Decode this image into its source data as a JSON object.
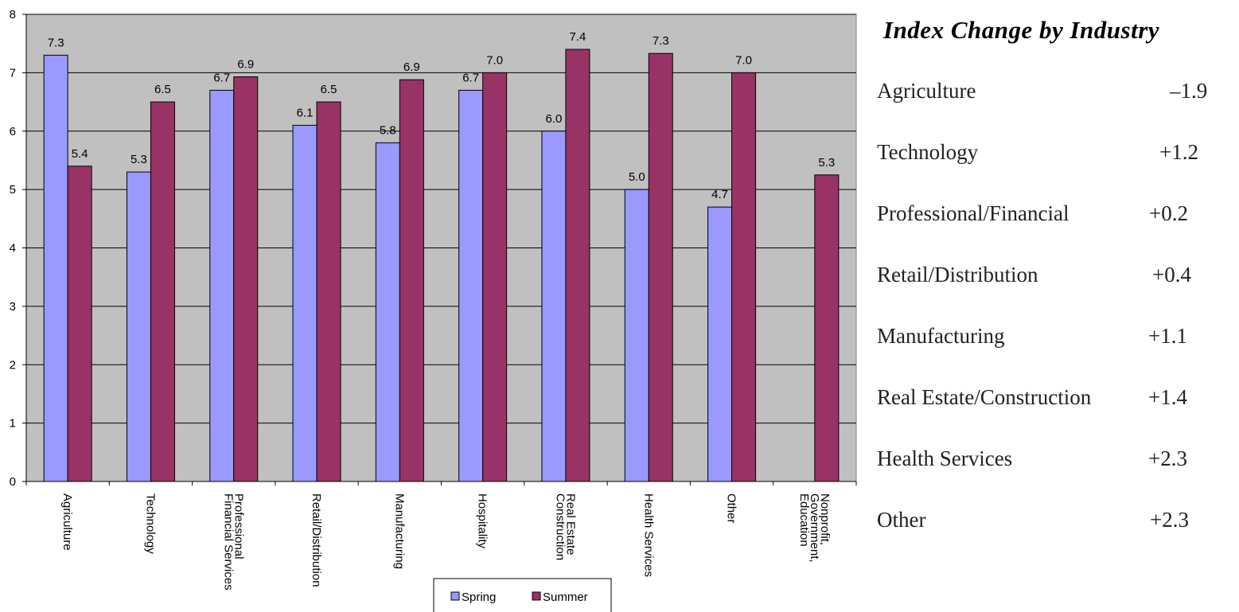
{
  "chart_data": {
    "type": "bar",
    "categories": [
      [
        "Agriculture"
      ],
      [
        "Technology"
      ],
      [
        "Professional",
        "Financial Services"
      ],
      [
        "Retail/Distribution"
      ],
      [
        "Manufacturing"
      ],
      [
        "Hospitality"
      ],
      [
        "Real Estate",
        "Construction"
      ],
      [
        "Health Services"
      ],
      [
        "Other"
      ],
      [
        "Nonprofit,",
        "Government,",
        "Education"
      ]
    ],
    "series": [
      {
        "name": "Spring",
        "color": "#9999ff",
        "values": [
          7.3,
          5.3,
          6.7,
          6.1,
          5.8,
          6.7,
          6.0,
          5.0,
          4.7,
          null
        ],
        "labels": [
          "7.3",
          "5.3",
          "6.7",
          "6.1",
          "5.8",
          "6.7",
          "6.0",
          "5.0",
          "4.7",
          ""
        ]
      },
      {
        "name": "Summer",
        "color": "#993366",
        "values": [
          5.4,
          6.5,
          6.93,
          6.5,
          6.88,
          7.0,
          7.4,
          7.33,
          7.0,
          5.25
        ],
        "labels": [
          "5.4",
          "6.5",
          "6.9",
          "6.5",
          "6.9",
          "7.0",
          "7.4",
          "7.3",
          "7.0",
          "5.3"
        ]
      }
    ],
    "ylim": [
      0,
      8
    ],
    "yticks": [
      "0",
      "1",
      "2",
      "3",
      "4",
      "5",
      "6",
      "7",
      "8"
    ],
    "grid": true,
    "plot_background": "#c0c0c0",
    "legend_position": "bottom-center"
  },
  "panel": {
    "title": "Index Change by Industry",
    "rows": [
      {
        "label": "Agriculture",
        "value": "–1.9"
      },
      {
        "label": "Technology",
        "value": "+1.2"
      },
      {
        "label": "Professional/Financial",
        "value": "+0.2"
      },
      {
        "label": "Retail/Distribution",
        "value": "+0.4"
      },
      {
        "label": "Manufacturing",
        "value": "+1.1"
      },
      {
        "label": "Real Estate/Construction",
        "value": "+1.4"
      },
      {
        "label": "Health Services",
        "value": "+2.3"
      },
      {
        "label": "Other",
        "value": "+2.3"
      }
    ]
  }
}
